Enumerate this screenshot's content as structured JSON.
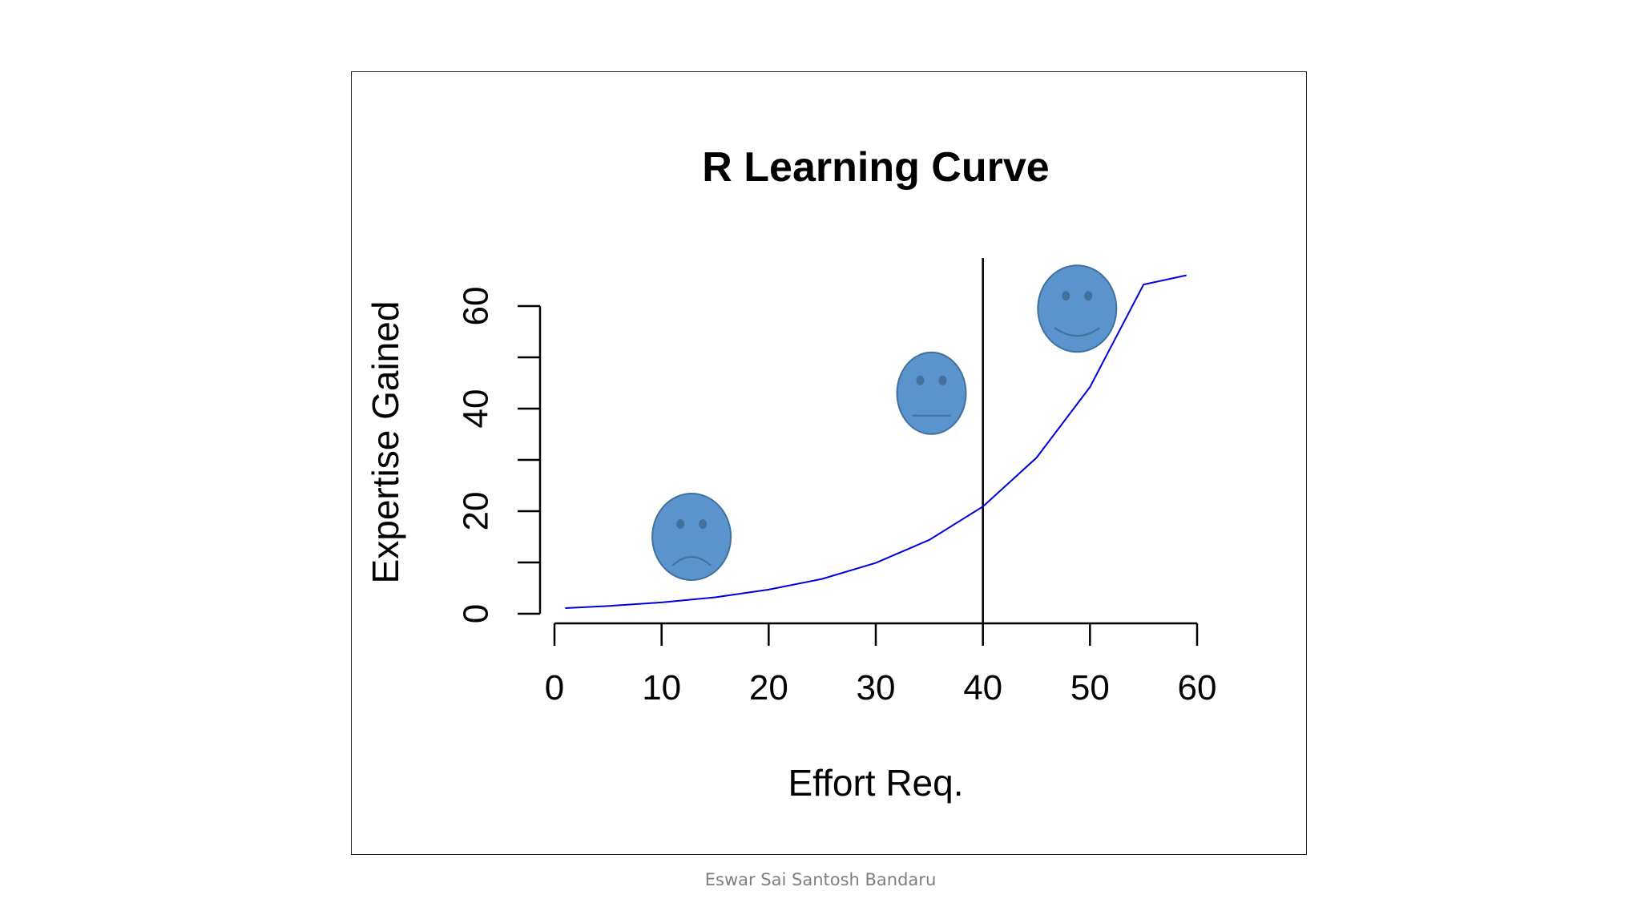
{
  "footer": {
    "author": "Eswar Sai Santosh Bandaru"
  },
  "colors": {
    "curve": "#0000dd",
    "face_fill": "#5b93cc",
    "face_stroke": "#41719c",
    "axis": "#000000"
  },
  "chart_data": {
    "type": "line",
    "title": "R Learning Curve",
    "xlabel": "Effort Req.",
    "ylabel": "Expertise Gained",
    "xlim": [
      0,
      60
    ],
    "ylim": [
      0,
      60
    ],
    "xticks": [
      0,
      10,
      20,
      30,
      40,
      50,
      60
    ],
    "yticks": [
      0,
      20,
      40,
      60
    ],
    "grid": false,
    "legend": "none",
    "series": [
      {
        "x": [
          1,
          5,
          10,
          15,
          20,
          25,
          30,
          35,
          40,
          45,
          50,
          55,
          59
        ],
        "y": [
          1.1,
          1.5,
          2.2,
          3.2,
          4.7,
          6.8,
          9.9,
          14.4,
          20.9,
          30.4,
          44.2,
          64.2,
          66.0
        ]
      }
    ],
    "vline": {
      "x": 40
    },
    "annotations": [
      {
        "icon": "sad-face-icon",
        "x": 12.8,
        "y": 15
      },
      {
        "icon": "neutral-face-icon",
        "x": 35.2,
        "y": 43
      },
      {
        "icon": "happy-face-icon",
        "x": 48.8,
        "y": 59.5
      }
    ]
  }
}
